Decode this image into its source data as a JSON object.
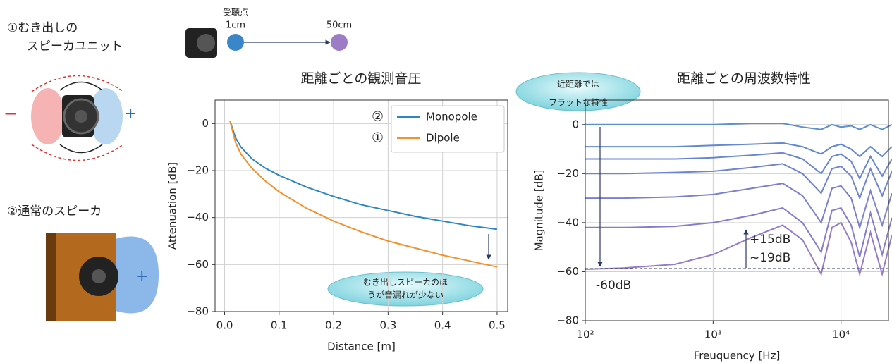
{
  "diagram": {
    "labels": [
      "①むき出しの",
      "スピーカユニット",
      "②通常のスピーカ",
      "−",
      "+",
      "+",
      "受聴点",
      "1cm",
      "50cm"
    ]
  },
  "chart_data": [
    {
      "type": "line",
      "title": "距離ごとの観測音圧",
      "xlabel": "Distance [m]",
      "ylabel": "Attenuation [dB]",
      "x": [
        0.01,
        0.02,
        0.03,
        0.05,
        0.075,
        0.1,
        0.15,
        0.2,
        0.25,
        0.3,
        0.35,
        0.4,
        0.45,
        0.5
      ],
      "series": [
        {
          "name": "Monopole",
          "color": "#2e86c1",
          "values": [
            1,
            -6,
            -10,
            -15,
            -19,
            -22,
            -27,
            -31,
            -34.5,
            -37,
            -39.5,
            -41.5,
            -43.5,
            -45
          ]
        },
        {
          "name": "Dipole",
          "color": "#f5902c",
          "values": [
            1,
            -8,
            -13,
            -19,
            -24.5,
            -29,
            -36,
            -41.5,
            -46,
            -50,
            -53,
            -56,
            -58.5,
            -61
          ]
        }
      ],
      "xlim": [
        -0.0175,
        0.5195
      ],
      "ylim": [
        -80,
        10
      ],
      "xticks": [
        {
          "value": 0,
          "label": "0.0"
        },
        0.1,
        0.2,
        0.3,
        0.4,
        0.5
      ],
      "yticks": [
        0,
        {
          "value": -20,
          "label": "−20"
        },
        {
          "value": -40,
          "label": "−40"
        },
        {
          "value": -60,
          "label": "−60"
        },
        {
          "value": -80,
          "label": "−80"
        }
      ],
      "grid": true,
      "legend": "upper right",
      "legend_markers": [
        "②",
        "①"
      ],
      "annotations": [
        "むき出しスピーカのほ",
        "うが音漏れが少ない"
      ]
    },
    {
      "type": "line",
      "title": "距離ごとの周波数特性",
      "xlabel": "Freuquency [Hz]",
      "ylabel": "Magnitude [dB]",
      "log_x": true,
      "x": [
        100,
        200,
        500,
        1000,
        2000,
        3500,
        5000,
        7000,
        8500,
        10000,
        12000,
        14000,
        17000,
        21000,
        25000
      ],
      "series": [
        {
          "color": "#5b8fd0",
          "values": [
            0,
            0,
            0,
            0,
            0.5,
            0.5,
            -1,
            -2,
            0,
            -1,
            -0.5,
            -2,
            0,
            -2,
            0
          ]
        },
        {
          "color": "#6089d0",
          "values": [
            -9,
            -9,
            -9,
            -8.5,
            -8,
            -7.5,
            -9,
            -12,
            -9,
            -8,
            -10,
            -13,
            -9,
            -13,
            -9
          ]
        },
        {
          "color": "#6886cf",
          "values": [
            -14,
            -14,
            -14,
            -13.5,
            -12.5,
            -11.5,
            -14,
            -20,
            -13,
            -12,
            -15,
            -22,
            -13,
            -21,
            -14
          ]
        },
        {
          "color": "#7083ce",
          "values": [
            -20,
            -20,
            -19.5,
            -19,
            -17.5,
            -16,
            -20,
            -28,
            -18,
            -17,
            -21,
            -30,
            -18,
            -29,
            -19
          ]
        },
        {
          "color": "#7a80cd",
          "values": [
            -30,
            -30,
            -29.5,
            -28.5,
            -26,
            -24,
            -29,
            -40,
            -26,
            -25,
            -30,
            -42,
            -27,
            -41,
            -28
          ]
        },
        {
          "color": "#857dcb",
          "values": [
            -42,
            -42,
            -41.5,
            -40,
            -37,
            -34,
            -40,
            -52,
            -35,
            -34,
            -41,
            -54,
            -36,
            -53,
            -38
          ]
        },
        {
          "color": "#947bc9",
          "values": [
            -59,
            -58.5,
            -57,
            -53,
            -46,
            -41,
            -47,
            -61,
            -42,
            -40,
            -48,
            -61,
            -44,
            -61,
            -45
          ]
        }
      ],
      "xlim": [
        100,
        23500
      ],
      "ylim": [
        -80,
        10
      ],
      "xticks": [
        {
          "value": 100,
          "label": "10²"
        },
        {
          "value": 1000,
          "label": "10³"
        },
        {
          "value": 10000,
          "label": "10⁴"
        }
      ],
      "yticks": [
        0,
        {
          "value": -20,
          "label": "−20"
        },
        {
          "value": -40,
          "label": "−40"
        },
        {
          "value": -60,
          "label": "−60"
        },
        {
          "value": -80,
          "label": "−80"
        }
      ],
      "grid": true,
      "annotations": [
        "近距離では",
        "フラットな特性",
        "-60dB",
        "+15dB",
        "~19dB"
      ]
    }
  ]
}
